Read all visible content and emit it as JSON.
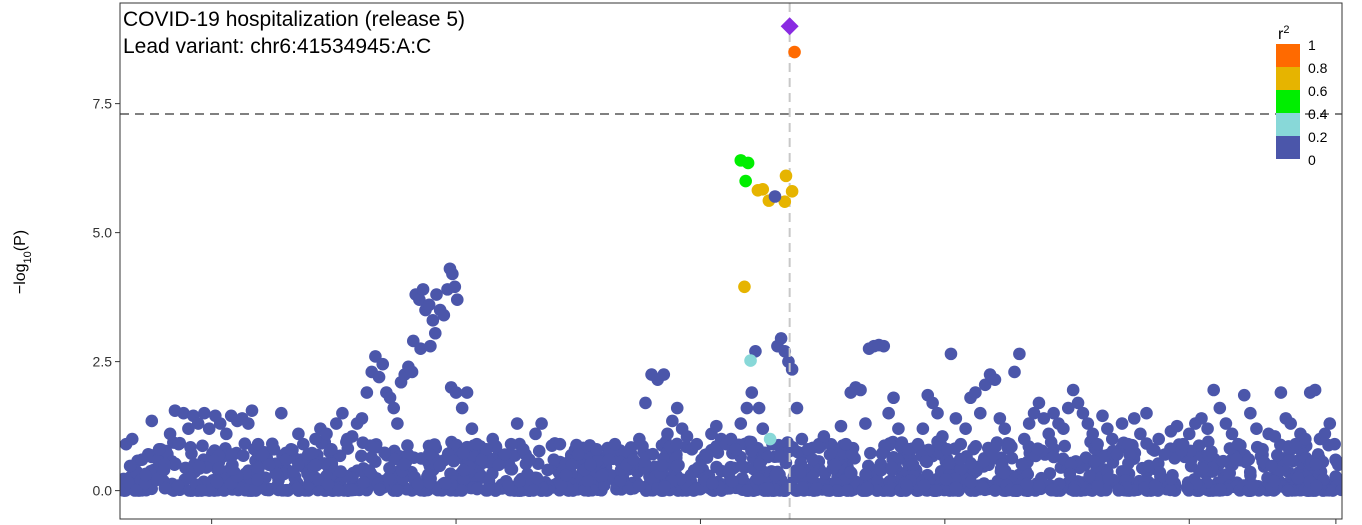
{
  "chart_data": {
    "type": "scatter",
    "title": "COVID-19 hospitalization (release 5)",
    "subtitle": "Lead variant: chr6:41534945:A:C",
    "xlabel": "",
    "ylabel": "−log10(P)",
    "ylabel_parts": {
      "prefix": "−log",
      "sub": "10",
      "suffix": "(P)"
    },
    "xlim": [
      0,
      100
    ],
    "ylim": [
      -0.55,
      9.45
    ],
    "y_ticks": [
      0.0,
      2.5,
      5.0,
      7.5
    ],
    "y_tick_labels": [
      "0.0",
      "2.5",
      "5.0",
      "7.5"
    ],
    "x_tick_positions": [
      7.5,
      27.5,
      47.5,
      67.5,
      87.5,
      99.5
    ],
    "significance_line": 7.3,
    "lead_variant_x": 54.8,
    "grid": false,
    "legend": {
      "title_base": "r",
      "title_sup": "2",
      "placement": "top-right",
      "labels": [
        "1",
        "0.8",
        "0.6",
        "0.4",
        "0.2",
        "0"
      ],
      "colors": [
        "#ff6a00",
        "#e6b400",
        "#00ee00",
        "#88d8d8",
        "#4b56aa"
      ]
    },
    "colors": {
      "r2_0_0.2": "#4b56aa",
      "r2_0.2_0.4": "#88d8d8",
      "r2_0.4_0.6": "#00ee00",
      "r2_0.6_0.8": "#e6b400",
      "r2_0.8_1": "#ff6a00",
      "lead": "#8a2be2",
      "threshold_line": "#808080",
      "lead_line": "#c8c8c8"
    },
    "lead_point": {
      "x": 54.8,
      "y": 9.0
    },
    "highlight_points": [
      {
        "x": 55.2,
        "y": 8.5,
        "r2": "0.8-1"
      },
      {
        "x": 50.8,
        "y": 6.4,
        "r2": "0.4-0.6"
      },
      {
        "x": 51.4,
        "y": 6.35,
        "r2": "0.4-0.6"
      },
      {
        "x": 51.2,
        "y": 6.0,
        "r2": "0.4-0.6"
      },
      {
        "x": 54.5,
        "y": 6.1,
        "r2": "0.6-0.8"
      },
      {
        "x": 55.0,
        "y": 5.8,
        "r2": "0.6-0.8"
      },
      {
        "x": 52.2,
        "y": 5.82,
        "r2": "0.6-0.8"
      },
      {
        "x": 52.6,
        "y": 5.84,
        "r2": "0.6-0.8"
      },
      {
        "x": 53.1,
        "y": 5.62,
        "r2": "0.6-0.8"
      },
      {
        "x": 54.4,
        "y": 5.6,
        "r2": "0.6-0.8"
      },
      {
        "x": 53.6,
        "y": 5.7,
        "r2": "0-0.2"
      },
      {
        "x": 51.1,
        "y": 3.95,
        "r2": "0.6-0.8"
      },
      {
        "x": 51.6,
        "y": 2.52,
        "r2": "0.2-0.4"
      },
      {
        "x": 53.2,
        "y": 1.0,
        "r2": "0.2-0.4"
      }
    ],
    "background_points": [
      [
        0.5,
        0.9
      ],
      [
        1.0,
        1.0
      ],
      [
        1.8,
        0.6
      ],
      [
        2.1,
        0.3
      ],
      [
        2.6,
        1.35
      ],
      [
        3.2,
        0.8
      ],
      [
        3.6,
        0.4
      ],
      [
        4.1,
        1.1
      ],
      [
        4.5,
        1.55
      ],
      [
        4.8,
        0.9
      ],
      [
        5.2,
        1.5
      ],
      [
        5.6,
        1.2
      ],
      [
        6.0,
        1.45
      ],
      [
        6.4,
        1.3
      ],
      [
        6.9,
        1.5
      ],
      [
        7.3,
        1.2
      ],
      [
        7.8,
        1.45
      ],
      [
        8.2,
        1.3
      ],
      [
        8.7,
        1.1
      ],
      [
        9.1,
        1.45
      ],
      [
        9.6,
        1.35
      ],
      [
        10.0,
        1.4
      ],
      [
        10.5,
        1.3
      ],
      [
        10.8,
        1.55
      ],
      [
        11.3,
        0.9
      ],
      [
        11.7,
        0.7
      ],
      [
        12.2,
        0.5
      ],
      [
        12.6,
        0.8
      ],
      [
        13.2,
        1.5
      ],
      [
        13.6,
        0.6
      ],
      [
        14.0,
        0.8
      ],
      [
        14.6,
        1.1
      ],
      [
        15.0,
        0.9
      ],
      [
        15.4,
        0.7
      ],
      [
        16.0,
        1.0
      ],
      [
        16.4,
        1.2
      ],
      [
        16.9,
        1.1
      ],
      [
        17.3,
        0.8
      ],
      [
        17.7,
        1.3
      ],
      [
        18.2,
        1.5
      ],
      [
        18.6,
        1.0
      ],
      [
        19.0,
        1.05
      ],
      [
        19.4,
        1.3
      ],
      [
        19.8,
        1.4
      ],
      [
        20.2,
        1.9
      ],
      [
        20.6,
        2.3
      ],
      [
        20.9,
        2.6
      ],
      [
        21.2,
        2.2
      ],
      [
        21.5,
        2.45
      ],
      [
        21.8,
        1.9
      ],
      [
        22.1,
        1.8
      ],
      [
        22.4,
        1.6
      ],
      [
        22.7,
        1.3
      ],
      [
        23.0,
        2.1
      ],
      [
        23.3,
        2.25
      ],
      [
        23.6,
        2.4
      ],
      [
        23.9,
        2.3
      ],
      [
        24.2,
        3.8
      ],
      [
        24.5,
        3.7
      ],
      [
        24.8,
        3.9
      ],
      [
        25.0,
        3.5
      ],
      [
        25.3,
        3.6
      ],
      [
        25.6,
        3.3
      ],
      [
        25.9,
        3.8
      ],
      [
        26.2,
        3.5
      ],
      [
        26.5,
        3.4
      ],
      [
        26.8,
        3.9
      ],
      [
        27.0,
        4.3
      ],
      [
        27.2,
        4.2
      ],
      [
        27.4,
        3.95
      ],
      [
        27.6,
        3.7
      ],
      [
        24.0,
        2.9
      ],
      [
        24.6,
        2.75
      ],
      [
        25.4,
        2.8
      ],
      [
        25.8,
        3.05
      ],
      [
        27.1,
        2.0
      ],
      [
        27.5,
        1.9
      ],
      [
        28.0,
        1.6
      ],
      [
        28.4,
        1.9
      ],
      [
        28.8,
        1.2
      ],
      [
        29.2,
        0.9
      ],
      [
        29.6,
        0.6
      ],
      [
        30.0,
        0.8
      ],
      [
        30.5,
        1.0
      ],
      [
        31.0,
        0.5
      ],
      [
        31.5,
        0.7
      ],
      [
        32.0,
        0.9
      ],
      [
        32.5,
        1.3
      ],
      [
        33.0,
        0.8
      ],
      [
        33.5,
        0.6
      ],
      [
        34.0,
        1.1
      ],
      [
        34.5,
        1.3
      ],
      [
        35.0,
        0.4
      ],
      [
        35.5,
        0.6
      ],
      [
        36.0,
        0.9
      ],
      [
        36.5,
        0.3
      ],
      [
        37.0,
        0.5
      ],
      [
        37.5,
        0.7
      ],
      [
        38.0,
        0.4
      ],
      [
        38.5,
        0.5
      ],
      [
        39.0,
        0.8
      ],
      [
        39.5,
        0.3
      ],
      [
        40.0,
        0.6
      ],
      [
        40.5,
        0.9
      ],
      [
        41.0,
        0.4
      ],
      [
        41.5,
        0.5
      ],
      [
        42.0,
        0.6
      ],
      [
        42.5,
        1.0
      ],
      [
        43.0,
        1.7
      ],
      [
        43.5,
        2.25
      ],
      [
        44.0,
        2.15
      ],
      [
        44.5,
        2.25
      ],
      [
        44.8,
        1.1
      ],
      [
        45.2,
        1.35
      ],
      [
        45.6,
        1.6
      ],
      [
        46.0,
        1.2
      ],
      [
        46.4,
        1.05
      ],
      [
        46.8,
        0.8
      ],
      [
        47.2,
        0.9
      ],
      [
        47.6,
        0.6
      ],
      [
        48.0,
        0.7
      ],
      [
        48.4,
        1.1
      ],
      [
        48.8,
        1.25
      ],
      [
        49.2,
        1.0
      ],
      [
        49.6,
        0.9
      ],
      [
        50.0,
        1.0
      ],
      [
        50.4,
        0.8
      ],
      [
        50.8,
        1.3
      ],
      [
        51.3,
        1.6
      ],
      [
        51.7,
        1.9
      ],
      [
        52.0,
        2.7
      ],
      [
        52.3,
        1.6
      ],
      [
        52.6,
        1.2
      ],
      [
        53.4,
        0.9
      ],
      [
        53.8,
        2.8
      ],
      [
        54.1,
        2.95
      ],
      [
        54.4,
        2.7
      ],
      [
        54.7,
        2.5
      ],
      [
        55.0,
        2.35
      ],
      [
        55.4,
        1.6
      ],
      [
        55.8,
        1.0
      ],
      [
        56.3,
        0.8
      ],
      [
        56.7,
        0.6
      ],
      [
        57.2,
        0.9
      ],
      [
        57.6,
        1.05
      ],
      [
        58.1,
        0.7
      ],
      [
        58.5,
        0.5
      ],
      [
        59.0,
        1.25
      ],
      [
        59.4,
        0.9
      ],
      [
        59.8,
        1.9
      ],
      [
        60.2,
        2.0
      ],
      [
        60.6,
        1.95
      ],
      [
        61.0,
        1.3
      ],
      [
        61.3,
        2.75
      ],
      [
        61.7,
        2.8
      ],
      [
        62.1,
        2.82
      ],
      [
        62.5,
        2.8
      ],
      [
        62.9,
        1.5
      ],
      [
        63.3,
        1.8
      ],
      [
        63.7,
        1.2
      ],
      [
        64.0,
        0.9
      ],
      [
        64.5,
        0.8
      ],
      [
        64.9,
        0.5
      ],
      [
        65.3,
        0.9
      ],
      [
        65.7,
        1.2
      ],
      [
        66.1,
        1.85
      ],
      [
        66.5,
        1.7
      ],
      [
        66.9,
        1.5
      ],
      [
        67.3,
        1.05
      ],
      [
        67.7,
        0.8
      ],
      [
        68.0,
        2.65
      ],
      [
        68.4,
        1.4
      ],
      [
        68.8,
        0.9
      ],
      [
        69.2,
        1.2
      ],
      [
        69.6,
        1.8
      ],
      [
        70.0,
        1.9
      ],
      [
        70.4,
        1.5
      ],
      [
        70.8,
        2.05
      ],
      [
        71.2,
        2.25
      ],
      [
        71.6,
        2.15
      ],
      [
        72.0,
        1.4
      ],
      [
        72.4,
        1.2
      ],
      [
        72.8,
        0.9
      ],
      [
        73.2,
        2.3
      ],
      [
        73.6,
        2.65
      ],
      [
        74.0,
        1.0
      ],
      [
        74.4,
        1.3
      ],
      [
        74.8,
        1.5
      ],
      [
        75.2,
        1.7
      ],
      [
        75.6,
        1.4
      ],
      [
        76.0,
        1.1
      ],
      [
        76.4,
        1.5
      ],
      [
        76.8,
        1.3
      ],
      [
        77.2,
        1.2
      ],
      [
        77.6,
        1.6
      ],
      [
        78.0,
        1.95
      ],
      [
        78.4,
        1.7
      ],
      [
        78.8,
        1.5
      ],
      [
        79.2,
        1.3
      ],
      [
        79.6,
        1.1
      ],
      [
        80.0,
        0.9
      ],
      [
        80.4,
        1.45
      ],
      [
        80.8,
        1.2
      ],
      [
        81.2,
        1.0
      ],
      [
        81.6,
        0.7
      ],
      [
        82.0,
        1.3
      ],
      [
        82.5,
        0.9
      ],
      [
        83.0,
        1.4
      ],
      [
        83.5,
        1.1
      ],
      [
        84.0,
        1.5
      ],
      [
        84.5,
        0.8
      ],
      [
        85.0,
        1.0
      ],
      [
        85.5,
        0.7
      ],
      [
        86.0,
        1.15
      ],
      [
        86.5,
        1.25
      ],
      [
        87.0,
        0.9
      ],
      [
        87.5,
        1.1
      ],
      [
        88.0,
        1.3
      ],
      [
        88.5,
        1.4
      ],
      [
        89.0,
        1.2
      ],
      [
        89.5,
        1.95
      ],
      [
        90.0,
        1.6
      ],
      [
        90.5,
        1.3
      ],
      [
        91.0,
        1.1
      ],
      [
        91.5,
        0.9
      ],
      [
        92.0,
        1.85
      ],
      [
        92.5,
        1.5
      ],
      [
        93.0,
        1.2
      ],
      [
        93.5,
        0.8
      ],
      [
        94.0,
        1.1
      ],
      [
        94.5,
        1.05
      ],
      [
        95.0,
        1.9
      ],
      [
        95.4,
        1.4
      ],
      [
        95.8,
        1.3
      ],
      [
        96.2,
        0.9
      ],
      [
        96.6,
        1.1
      ],
      [
        97.0,
        1.0
      ],
      [
        97.4,
        1.9
      ],
      [
        97.8,
        1.95
      ],
      [
        98.2,
        1.0
      ],
      [
        98.6,
        1.1
      ],
      [
        99.0,
        1.3
      ],
      [
        99.4,
        0.9
      ],
      [
        99.7,
        0.5
      ]
    ],
    "baseline_band": {
      "count": 1500,
      "ymin": 0.0,
      "ymax": 0.95
    }
  }
}
